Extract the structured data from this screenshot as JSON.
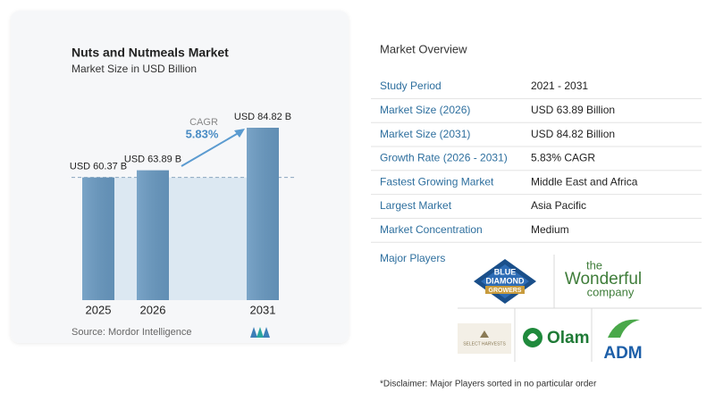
{
  "chart_data": {
    "type": "bar",
    "title": "Nuts and Nutmeals Market",
    "subtitle": "Market Size in USD Billion",
    "categories": [
      "2025",
      "2026",
      "2031"
    ],
    "values": [
      60.37,
      63.89,
      84.82
    ],
    "value_labels": [
      "USD 60.37 B",
      "USD 63.89 B",
      "USD 84.82 B"
    ],
    "color": "#6898c0",
    "annotation": {
      "label": "CAGR",
      "value": "5.83%"
    },
    "source": "Source: Mordor Intelligence"
  },
  "overview": {
    "title": "Market Overview",
    "rows": [
      [
        "Study Period",
        "2021 - 2031"
      ],
      [
        "Market Size (2026)",
        "USD 63.89 Billion"
      ],
      [
        "Market Size (2031)",
        "USD 84.82 Billion"
      ],
      [
        "Growth Rate (2026 - 2031)",
        "5.83% CAGR"
      ],
      [
        "Fastest Growing Market",
        "Middle East and Africa"
      ],
      [
        "Largest Market",
        "Asia Pacific"
      ],
      [
        "Market Concentration",
        "Medium"
      ]
    ]
  },
  "players": {
    "title": "Major Players",
    "logos": [
      [
        "BLUE",
        "DIAMOND",
        "GROWERS"
      ],
      [
        "the",
        "Wonderful",
        "company"
      ],
      [
        "SELECT HARVESTS"
      ],
      [
        "Olam"
      ],
      [
        "ADM"
      ]
    ]
  },
  "disclaimer": "*Disclaimer: Major Players sorted in no particular order"
}
